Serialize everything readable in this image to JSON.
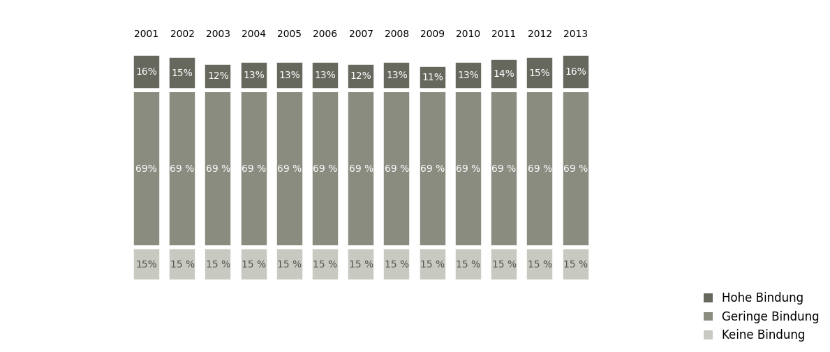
{
  "chart_data": {
    "type": "bar",
    "stacked": true,
    "data_labels": true,
    "tick_labels": "x",
    "legend": "lower right",
    "categories": [
      "2001",
      "2002",
      "2003",
      "2004",
      "2005",
      "2006",
      "2007",
      "2008",
      "2009",
      "2010",
      "2011",
      "2012",
      "2013"
    ],
    "series": [
      {
        "name": "Keine Bindung",
        "color": "#c8c9c0",
        "values": [
          15,
          15,
          15,
          15,
          15,
          15,
          15,
          15,
          15,
          15,
          15,
          15,
          15
        ],
        "value_labels": [
          "15%",
          "15 %",
          "15 %",
          "15 %",
          "15 %",
          "15 %",
          "15 %",
          "15 %",
          "15 %",
          "15 %",
          "15 %",
          "15 %",
          "15 %"
        ]
      },
      {
        "name": "Geringe Bindung",
        "color": "#8a8c80",
        "values": [
          69,
          69,
          69,
          69,
          69,
          69,
          69,
          69,
          69,
          69,
          69,
          69,
          69
        ],
        "value_labels": [
          "69%",
          "69 %",
          "69 %",
          "69 %",
          "69 %",
          "69 %",
          "69 %",
          "69 %",
          "69 %",
          "69 %",
          "69 %",
          "69 %",
          "69 %"
        ]
      },
      {
        "name": "Hohe Bindung",
        "color": "#66685e",
        "values": [
          16,
          15,
          12,
          13,
          13,
          13,
          12,
          13,
          11,
          13,
          14,
          15,
          16
        ],
        "value_labels": [
          "16%",
          "15%",
          "12%",
          "13%",
          "13%",
          "13%",
          "12%",
          "13%",
          "11%",
          "13%",
          "14%",
          "15%",
          "16%"
        ]
      }
    ]
  }
}
